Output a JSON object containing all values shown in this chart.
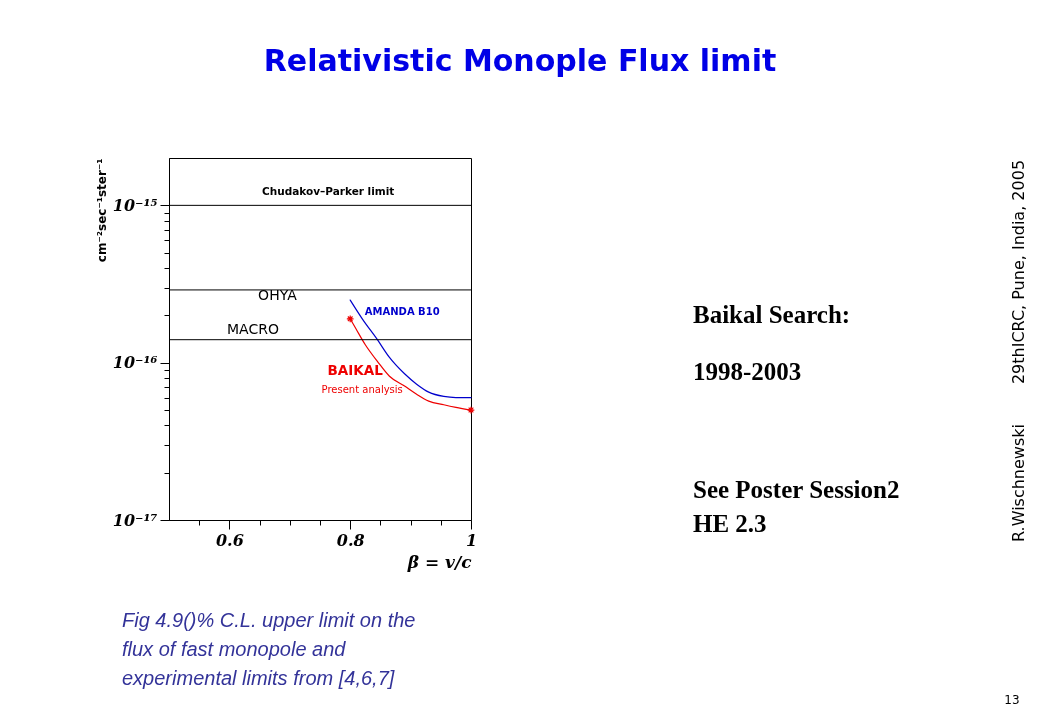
{
  "chart_data": {
    "type": "line",
    "title": "Relativistic Monople Flux limit",
    "xlabel": "β = v/c",
    "ylabel": "cm⁻²sec⁻¹ster⁻¹",
    "log": "y",
    "xlim": [
      0.5,
      1
    ],
    "ylim": [
      1e-17,
      2e-15
    ],
    "xticks": [
      {
        "value": 0.55,
        "label": null
      },
      0.6,
      {
        "value": 0.65,
        "label": null
      },
      {
        "value": 0.7,
        "label": null
      },
      {
        "value": 0.75,
        "label": null
      },
      0.8,
      {
        "value": 0.85,
        "label": null
      },
      {
        "value": 0.9,
        "label": null
      },
      {
        "value": 0.95,
        "label": null
      },
      1
    ],
    "yticks": [
      {
        "value": 1e-17,
        "label": "10⁻¹⁷"
      },
      {
        "value": 2e-17,
        "label": null
      },
      {
        "value": 3e-17,
        "label": null
      },
      {
        "value": 4e-17,
        "label": null
      },
      {
        "value": 5e-17,
        "label": null
      },
      {
        "value": 6e-17,
        "label": null
      },
      {
        "value": 7e-17,
        "label": null
      },
      {
        "value": 8e-17,
        "label": null
      },
      {
        "value": 9e-17,
        "label": null
      },
      {
        "value": 1e-16,
        "label": "10⁻¹⁶"
      },
      {
        "value": 2e-16,
        "label": null
      },
      {
        "value": 3e-16,
        "label": null
      },
      {
        "value": 4e-16,
        "label": null
      },
      {
        "value": 5e-16,
        "label": null
      },
      {
        "value": 6e-16,
        "label": null
      },
      {
        "value": 7e-16,
        "label": null
      },
      {
        "value": 8e-16,
        "label": null
      },
      {
        "value": 9e-16,
        "label": null
      },
      {
        "value": 1e-15,
        "label": "10⁻¹⁵"
      }
    ],
    "series": [
      {
        "name": "AMANDA B10",
        "color": "#0000cc",
        "x": [
          0.8,
          0.82,
          0.845,
          0.865,
          0.89,
          0.91,
          0.93,
          0.955,
          0.975,
          1
        ],
        "values": [
          2.5e-16,
          1.9e-16,
          1.4e-16,
          1.08e-16,
          8.5e-17,
          7.3e-17,
          6.5e-17,
          6.1e-17,
          6e-17,
          6e-17
        ]
      },
      {
        "name": "BAIKAL\nPresent analysis",
        "color": "#ee0000",
        "x": [
          0.8,
          0.81,
          0.825,
          0.845,
          0.865,
          0.89,
          0.91,
          0.93,
          0.955,
          0.975,
          1
        ],
        "values": [
          1.9e-16,
          1.63e-16,
          1.3e-16,
          1.02e-16,
          8.2e-17,
          7.1e-17,
          6.3e-17,
          5.7e-17,
          5.4e-17,
          5.2e-17,
          5e-17
        ]
      },
      {
        "type": "scatter",
        "color": "#ee0000",
        "marker": "cross",
        "x": [
          0.8,
          1
        ],
        "values": [
          1.9e-16,
          5e-17
        ]
      }
    ],
    "ref_lines": [
      {
        "axis": "y",
        "value": 1e-15,
        "label": "Chudakov–Parker limit",
        "color": "#000000"
      },
      {
        "axis": "y",
        "value": 2.9e-16,
        "label": "OHYA",
        "color": "#000000"
      },
      {
        "axis": "y",
        "value": 1.4e-16,
        "label": "MACRO",
        "color": "#000000"
      }
    ],
    "annotations": [
      "Fig 4.9()% C.L. upper limit on the flux of fast monopole and experimental limits from [4,6,7]",
      "Baikal Search:",
      "1998-2003",
      "See Poster Session2",
      "HE 2.3",
      "R.Wischnewski",
      "29thICRC, Pune, India, 2005",
      "13"
    ]
  }
}
